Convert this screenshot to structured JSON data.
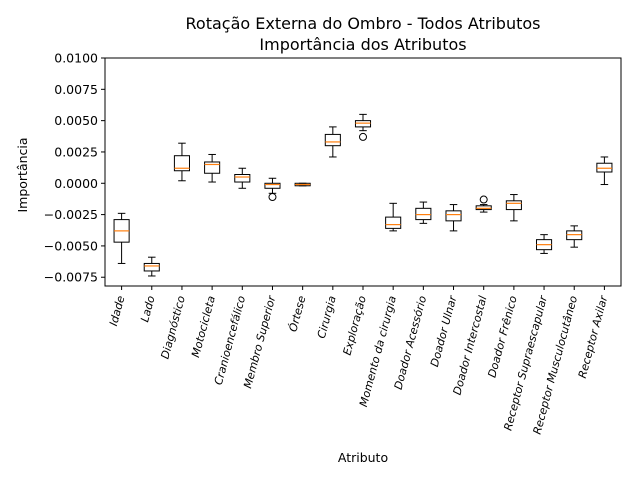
{
  "chart_data": {
    "type": "boxplot",
    "title": "Rotação Externa do Ombro - Todos Atributos",
    "subtitle": "Importância dos Atributos",
    "xlabel": "Atributo",
    "ylabel": "Importância",
    "ylim": [
      -0.0082,
      0.01
    ],
    "yticks": [
      0.01,
      0.0075,
      0.005,
      0.0025,
      0.0,
      -0.0025,
      -0.005,
      -0.0075
    ],
    "ytick_labels": [
      "0.0100",
      "0.0075",
      "0.0050",
      "0.0025",
      "0.0000",
      "−0.0025",
      "−0.0050",
      "−0.0075"
    ],
    "grid": false,
    "colors": {
      "box": "#000000",
      "median": "#ff7f0e"
    },
    "categories": [
      "Idade",
      "Lado",
      "Diagnóstico",
      "Motocicleta",
      "Cranioencefálico",
      "Membro Superior",
      "Órtese",
      "Cirurgia",
      "Exploração",
      "Momento da cirurgia",
      "Doador Acessório",
      "Doador Ulnar",
      "Doador Intercostal",
      "Doador Frênico",
      "Receptor Supraescapular",
      "Receptor Musculocutâneo",
      "Receptor Axilar"
    ],
    "series": [
      {
        "category": "Idade",
        "whisker_low": -0.0064,
        "q1": -0.0047,
        "median": -0.0038,
        "q3": -0.0029,
        "whisker_high": -0.0024,
        "outliers": []
      },
      {
        "category": "Lado",
        "whisker_low": -0.0074,
        "q1": -0.007,
        "median": -0.0066,
        "q3": -0.0064,
        "whisker_high": -0.0059,
        "outliers": []
      },
      {
        "category": "Diagnóstico",
        "whisker_low": 0.0002,
        "q1": 0.001,
        "median": 0.0012,
        "q3": 0.0022,
        "whisker_high": 0.0032,
        "outliers": []
      },
      {
        "category": "Motocicleta",
        "whisker_low": 0.0001,
        "q1": 0.0008,
        "median": 0.0015,
        "q3": 0.0017,
        "whisker_high": 0.0023,
        "outliers": []
      },
      {
        "category": "Cranioencefálico",
        "whisker_low": -0.0004,
        "q1": 0.0001,
        "median": 0.0005,
        "q3": 0.0007,
        "whisker_high": 0.0012,
        "outliers": []
      },
      {
        "category": "Membro Superior",
        "whisker_low": -0.0008,
        "q1": -0.0004,
        "median": -0.0001,
        "q3": 0.0,
        "whisker_high": 0.0004,
        "outliers": [
          -0.0011
        ]
      },
      {
        "category": "Órtese",
        "whisker_low": -0.0002,
        "q1": -0.0002,
        "median": -0.0001,
        "q3": 0.0,
        "whisker_high": 0.0,
        "outliers": []
      },
      {
        "category": "Cirurgia",
        "whisker_low": 0.0021,
        "q1": 0.003,
        "median": 0.0033,
        "q3": 0.0039,
        "whisker_high": 0.0045,
        "outliers": []
      },
      {
        "category": "Exploração",
        "whisker_low": 0.0042,
        "q1": 0.0045,
        "median": 0.0048,
        "q3": 0.005,
        "whisker_high": 0.0055,
        "outliers": [
          0.0037
        ]
      },
      {
        "category": "Momento da cirurgia",
        "whisker_low": -0.0038,
        "q1": -0.0036,
        "median": -0.0033,
        "q3": -0.0027,
        "whisker_high": -0.0016,
        "outliers": []
      },
      {
        "category": "Doador Acessório",
        "whisker_low": -0.0032,
        "q1": -0.0029,
        "median": -0.0025,
        "q3": -0.002,
        "whisker_high": -0.0015,
        "outliers": []
      },
      {
        "category": "Doador Ulnar",
        "whisker_low": -0.0038,
        "q1": -0.003,
        "median": -0.0025,
        "q3": -0.0022,
        "whisker_high": -0.0017,
        "outliers": []
      },
      {
        "category": "Doador Intercostal",
        "whisker_low": -0.0023,
        "q1": -0.0021,
        "median": -0.002,
        "q3": -0.0018,
        "whisker_high": -0.0017,
        "outliers": [
          -0.0013
        ]
      },
      {
        "category": "Doador Frênico",
        "whisker_low": -0.003,
        "q1": -0.0021,
        "median": -0.0016,
        "q3": -0.0014,
        "whisker_high": -0.0009,
        "outliers": []
      },
      {
        "category": "Receptor Supraescapular",
        "whisker_low": -0.0056,
        "q1": -0.0053,
        "median": -0.0049,
        "q3": -0.0045,
        "whisker_high": -0.0041,
        "outliers": []
      },
      {
        "category": "Receptor Musculocutâneo",
        "whisker_low": -0.0051,
        "q1": -0.0045,
        "median": -0.0041,
        "q3": -0.0038,
        "whisker_high": -0.0034,
        "outliers": []
      },
      {
        "category": "Receptor Axilar",
        "whisker_low": -0.0001,
        "q1": 0.0009,
        "median": 0.0012,
        "q3": 0.0016,
        "whisker_high": 0.0021,
        "outliers": []
      }
    ]
  }
}
